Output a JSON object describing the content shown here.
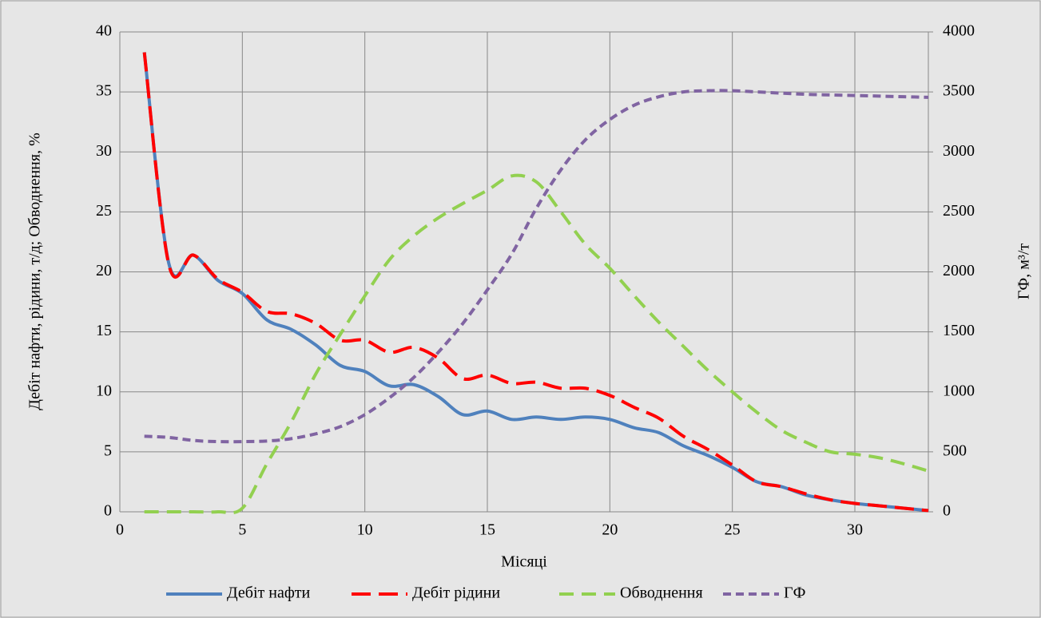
{
  "chart_data": {
    "type": "line",
    "xlabel": "Місяці",
    "ylabel": "Дебіт нафти, рідини, т/д; Обводнення, %",
    "y2label": "ГФ, м³/т",
    "x": [
      1,
      2,
      3,
      4,
      5,
      6,
      7,
      8,
      9,
      10,
      11,
      12,
      13,
      14,
      15,
      16,
      17,
      18,
      19,
      20,
      21,
      22,
      23,
      24,
      25,
      26,
      27,
      28,
      29,
      30,
      31,
      32,
      33
    ],
    "series": [
      {
        "name": "Дебіт нафти",
        "color": "#4f81bd",
        "dash": "solid",
        "values": [
          38.3,
          20.7,
          21.4,
          19.3,
          18.2,
          16.0,
          15.2,
          13.9,
          12.2,
          11.7,
          10.5,
          10.6,
          9.6,
          8.1,
          8.4,
          7.7,
          7.9,
          7.7,
          7.9,
          7.7,
          7.0,
          6.6,
          5.5,
          4.7,
          3.7,
          2.5,
          2.1,
          1.4,
          1.0,
          0.7,
          0.5,
          0.3,
          0.1
        ]
      },
      {
        "name": "Дебіт рідини",
        "color": "#ff0000",
        "dash": "long",
        "values": [
          38.3,
          20.6,
          21.4,
          19.4,
          18.3,
          16.7,
          16.5,
          15.7,
          14.3,
          14.3,
          13.3,
          13.7,
          12.8,
          11.1,
          11.4,
          10.7,
          10.8,
          10.3,
          10.3,
          9.7,
          8.7,
          7.8,
          6.3,
          5.2,
          3.9,
          2.5,
          2.1,
          1.5,
          1.0,
          0.7,
          0.5,
          0.3,
          0.1
        ]
      },
      {
        "name": "Обводнення",
        "color": "#92d050",
        "dash": "medium",
        "values": [
          0,
          0,
          0,
          0,
          0.3,
          4.0,
          7.5,
          11.5,
          14.8,
          18.0,
          21.0,
          23.0,
          24.5,
          25.7,
          26.8,
          28.0,
          27.5,
          25.0,
          22.3,
          20.3,
          18.0,
          15.8,
          13.8,
          11.8,
          10.0,
          8.3,
          6.8,
          5.8,
          5.0,
          4.8,
          4.5,
          4.0,
          3.4
        ]
      },
      {
        "name": "ГФ",
        "color": "#8064a2",
        "dash": "short",
        "axis": "y2",
        "values": [
          630,
          620,
          595,
          585,
          585,
          590,
          610,
          650,
          710,
          810,
          950,
          1120,
          1330,
          1570,
          1850,
          2150,
          2530,
          2850,
          3100,
          3270,
          3390,
          3460,
          3500,
          3510,
          3510,
          3500,
          3490,
          3480,
          3475,
          3470,
          3465,
          3460,
          3455
        ]
      }
    ],
    "xlim": [
      0,
      33
    ],
    "xticks": [
      0,
      5,
      10,
      15,
      20,
      25,
      30
    ],
    "ylim": [
      0,
      40
    ],
    "yticks": [
      0,
      5,
      10,
      15,
      20,
      25,
      30,
      35,
      40
    ],
    "y2lim": [
      0,
      4000
    ],
    "y2ticks": [
      0,
      500,
      1000,
      1500,
      2000,
      2500,
      3000,
      3500,
      4000
    ],
    "grid": true,
    "legend": "bottom"
  }
}
